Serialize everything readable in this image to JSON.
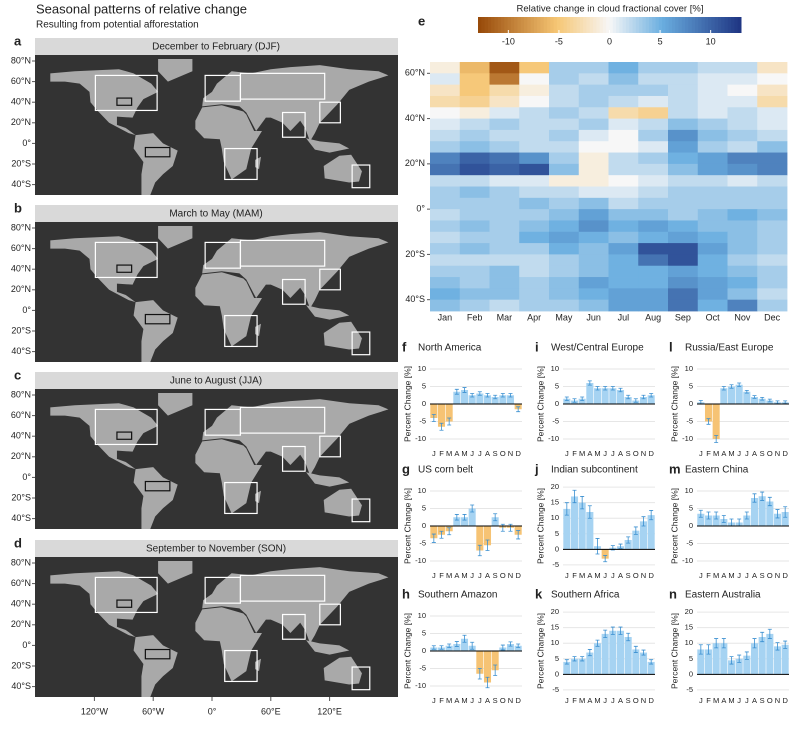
{
  "header": {
    "title": "Seasonal patterns of relative change",
    "subtitle": "Resulting from potential afforestation"
  },
  "maps": {
    "panels": [
      {
        "letter": "a",
        "title": "December to February (DJF)"
      },
      {
        "letter": "b",
        "title": "March to May (MAM)"
      },
      {
        "letter": "c",
        "title": "June to August (JJA)"
      },
      {
        "letter": "d",
        "title": "September to November (SON)"
      }
    ],
    "lat_ticks": [
      {
        "value": 80,
        "label": "80°N"
      },
      {
        "value": 60,
        "label": "60°N"
      },
      {
        "value": 40,
        "label": "40°N"
      },
      {
        "value": 20,
        "label": "20°N"
      },
      {
        "value": 0,
        "label": "0°"
      },
      {
        "value": -20,
        "label": "20°S"
      },
      {
        "value": -40,
        "label": "40°S"
      }
    ],
    "lon_ticks": [
      {
        "value": -120,
        "label": "120°W"
      },
      {
        "value": -60,
        "label": "60°W"
      },
      {
        "value": 0,
        "label": "0°"
      },
      {
        "value": 60,
        "label": "60°E"
      },
      {
        "value": 120,
        "label": "120°E"
      }
    ]
  },
  "chart_data": [
    {
      "type": "heatmap",
      "letter": "e",
      "colorbar_title": "Relative change in cloud fractional cover [%]",
      "categories": [
        "Jan",
        "Feb",
        "Mar",
        "Apr",
        "May",
        "Jun",
        "Jul",
        "Aug",
        "Sep",
        "Oct",
        "Nov",
        "Dec"
      ],
      "y": [
        62.5,
        57.5,
        52.5,
        47.5,
        42.5,
        37.5,
        32.5,
        27.5,
        22.5,
        17.5,
        12.5,
        7.5,
        2.5,
        -2.5,
        -7.5,
        -12.5,
        -17.5,
        -22.5,
        -27.5,
        -32.5,
        -37.5,
        -42.5
      ],
      "ylim": [
        -45,
        65
      ],
      "yticks": [
        {
          "value": 60,
          "label": "60°N"
        },
        {
          "value": 40,
          "label": "40°N"
        },
        {
          "value": 20,
          "label": "20°N"
        },
        {
          "value": 0,
          "label": "0°"
        },
        {
          "value": -20,
          "label": "20°S"
        },
        {
          "value": -40,
          "label": "40°S"
        }
      ],
      "clim": [
        -13,
        13
      ],
      "cticks": [
        -10,
        -5,
        0,
        5,
        10
      ],
      "values": [
        [
          -1,
          -6,
          -12,
          -5,
          3,
          3,
          5,
          3,
          3,
          2,
          2,
          -2
        ],
        [
          1,
          -5,
          -10,
          0,
          3,
          2,
          4,
          2,
          2,
          1,
          1,
          0
        ],
        [
          -2,
          -5,
          -3,
          -1,
          2,
          3,
          3,
          3,
          2,
          1,
          0,
          -2
        ],
        [
          -3,
          -4,
          -2,
          0,
          2,
          3,
          2,
          1,
          2,
          1,
          1,
          -3
        ],
        [
          0,
          -1,
          1,
          2,
          3,
          2,
          -3,
          -4,
          2,
          1,
          2,
          1
        ],
        [
          1,
          2,
          3,
          2,
          2,
          3,
          1,
          2,
          4,
          3,
          2,
          1
        ],
        [
          2,
          3,
          2,
          2,
          3,
          1,
          0,
          3,
          7,
          4,
          3,
          2
        ],
        [
          3,
          4,
          3,
          2,
          2,
          0,
          0,
          1,
          6,
          3,
          2,
          4
        ],
        [
          8,
          10,
          9,
          7,
          3,
          -1,
          2,
          3,
          5,
          6,
          8,
          8
        ],
        [
          9,
          11,
          10,
          11,
          4,
          -1,
          2,
          2,
          4,
          6,
          7,
          8
        ],
        [
          2,
          2,
          1,
          1,
          -1,
          -1,
          0,
          1,
          2,
          2,
          1,
          2
        ],
        [
          3,
          4,
          3,
          2,
          2,
          1,
          1,
          2,
          3,
          3,
          3,
          3
        ],
        [
          3,
          3,
          3,
          4,
          3,
          4,
          2,
          3,
          3,
          3,
          3,
          3
        ],
        [
          2,
          3,
          3,
          3,
          4,
          6,
          4,
          4,
          3,
          4,
          5,
          4
        ],
        [
          3,
          4,
          3,
          4,
          5,
          7,
          5,
          6,
          5,
          4,
          4,
          3
        ],
        [
          2,
          3,
          3,
          5,
          6,
          5,
          4,
          5,
          6,
          5,
          4,
          3
        ],
        [
          3,
          4,
          3,
          3,
          5,
          4,
          6,
          11,
          11,
          6,
          4,
          3
        ],
        [
          2,
          2,
          2,
          2,
          3,
          4,
          5,
          9,
          11,
          5,
          3,
          2
        ],
        [
          3,
          3,
          4,
          2,
          3,
          4,
          5,
          5,
          6,
          5,
          4,
          3
        ],
        [
          4,
          3,
          4,
          3,
          4,
          6,
          5,
          5,
          7,
          6,
          5,
          3
        ],
        [
          5,
          4,
          4,
          3,
          4,
          5,
          6,
          6,
          9,
          6,
          4,
          2
        ],
        [
          4,
          3,
          2,
          3,
          3,
          4,
          6,
          6,
          9,
          5,
          8,
          3
        ]
      ]
    },
    {
      "type": "bar",
      "letter": "f",
      "title": "North America",
      "ylabel": "Percent Change [%]",
      "categories": [
        "J",
        "F",
        "M",
        "A",
        "M",
        "J",
        "J",
        "A",
        "S",
        "O",
        "N",
        "D"
      ],
      "values": [
        -4,
        -6.5,
        -5,
        3.5,
        4,
        2.5,
        3,
        2.5,
        2,
        2.5,
        2.5,
        -1.5
      ],
      "errors": [
        1,
        1,
        1,
        0.7,
        0.7,
        0.5,
        0.5,
        0.5,
        0.5,
        0.5,
        0.5,
        0.7
      ],
      "ylim": [
        -12,
        12
      ],
      "yticks": [
        -10,
        -5,
        0,
        5,
        10
      ],
      "color": "#a6d3f2",
      "negative_color": "#f6c374"
    },
    {
      "type": "bar",
      "letter": "g",
      "title": "US corn belt",
      "ylabel": "Percent Change [%]",
      "categories": [
        "J",
        "F",
        "M",
        "A",
        "M",
        "J",
        "J",
        "A",
        "S",
        "O",
        "N",
        "D"
      ],
      "values": [
        -3.5,
        -2.5,
        -1.5,
        2.5,
        2.5,
        5,
        -7,
        -5.5,
        2.5,
        -0.5,
        -0.5,
        -2.5
      ],
      "errors": [
        1.2,
        1,
        1,
        0.8,
        0.8,
        1,
        1.5,
        1.5,
        1,
        1,
        1,
        1.2
      ],
      "ylim": [
        -12,
        12
      ],
      "yticks": [
        -10,
        -5,
        0,
        5,
        10
      ],
      "color": "#a6d3f2",
      "negative_color": "#f6c374"
    },
    {
      "type": "bar",
      "letter": "h",
      "title": "Southern Amazon",
      "ylabel": "Percent Change [%]",
      "categories": [
        "J",
        "F",
        "M",
        "A",
        "M",
        "J",
        "J",
        "A",
        "S",
        "O",
        "N",
        "D"
      ],
      "values": [
        1,
        1,
        1.5,
        2,
        3.5,
        1.5,
        -6.5,
        -9,
        -5.5,
        1,
        2,
        1.5
      ],
      "errors": [
        0.5,
        0.5,
        0.5,
        0.7,
        1,
        1,
        1.5,
        1.5,
        1.5,
        0.7,
        0.6,
        0.5
      ],
      "ylim": [
        -12,
        12
      ],
      "yticks": [
        -10,
        -5,
        0,
        5,
        10
      ],
      "color": "#a6d3f2",
      "negative_color": "#f6c374"
    },
    {
      "type": "bar",
      "letter": "i",
      "title": "West/Central Europe",
      "ylabel": "Percent Change [%]",
      "categories": [
        "J",
        "F",
        "M",
        "A",
        "M",
        "J",
        "J",
        "A",
        "S",
        "O",
        "N",
        "D"
      ],
      "values": [
        1.5,
        1,
        1.5,
        6,
        4.5,
        4.5,
        4.5,
        4,
        2,
        1,
        2,
        2.5
      ],
      "errors": [
        0.5,
        0.5,
        0.5,
        0.6,
        0.5,
        0.5,
        0.5,
        0.5,
        0.5,
        0.5,
        0.5,
        0.5
      ],
      "ylim": [
        -12,
        12
      ],
      "yticks": [
        -10,
        -5,
        0,
        5,
        10
      ],
      "color": "#a6d3f2",
      "negative_color": "#f6c374"
    },
    {
      "type": "bar",
      "letter": "j",
      "title": "Indian subcontinent",
      "ylabel": "Percent Change [%]",
      "categories": [
        "J",
        "F",
        "M",
        "A",
        "M",
        "J",
        "J",
        "A",
        "S",
        "O",
        "N",
        "D"
      ],
      "values": [
        13,
        17,
        15,
        12,
        1,
        -3,
        0.5,
        1,
        3,
        6,
        9,
        11
      ],
      "errors": [
        2,
        2,
        2,
        2,
        2.5,
        1,
        0.7,
        0.7,
        1,
        1.2,
        1.5,
        1.5
      ],
      "ylim": [
        -6,
        21
      ],
      "yticks": [
        -5,
        0,
        5,
        10,
        15,
        20
      ],
      "color": "#a6d3f2",
      "negative_color": "#f6c374"
    },
    {
      "type": "bar",
      "letter": "k",
      "title": "Southern Africa",
      "ylabel": "Percent Change [%]",
      "categories": [
        "J",
        "F",
        "M",
        "A",
        "M",
        "J",
        "J",
        "A",
        "S",
        "O",
        "N",
        "D"
      ],
      "values": [
        4,
        5,
        5,
        7,
        10,
        13,
        14,
        14,
        12,
        8,
        7,
        4
      ],
      "errors": [
        0.7,
        0.7,
        0.7,
        1,
        1,
        1.2,
        1.2,
        1.2,
        1.2,
        1,
        0.8,
        0.7
      ],
      "ylim": [
        -6,
        21
      ],
      "yticks": [
        -5,
        0,
        5,
        10,
        15,
        20
      ],
      "color": "#a6d3f2",
      "negative_color": "#f6c374"
    },
    {
      "type": "bar",
      "letter": "l",
      "title": "Russia/East Europe",
      "ylabel": "Percent Change [%]",
      "categories": [
        "J",
        "F",
        "M",
        "A",
        "M",
        "J",
        "J",
        "A",
        "S",
        "O",
        "N",
        "D"
      ],
      "values": [
        0.5,
        -5,
        -10,
        4.5,
        5,
        5.5,
        3.5,
        2,
        1.5,
        1,
        0.5,
        0.5
      ],
      "errors": [
        0.5,
        0.8,
        1,
        0.5,
        0.5,
        0.5,
        0.4,
        0.4,
        0.4,
        0.4,
        0.4,
        0.4
      ],
      "ylim": [
        -12,
        12
      ],
      "yticks": [
        -10,
        -5,
        0,
        5,
        10
      ],
      "color": "#a6d3f2",
      "negative_color": "#f6c374"
    },
    {
      "type": "bar",
      "letter": "m",
      "title": "Eastern China",
      "ylabel": "Percent Change [%]",
      "categories": [
        "J",
        "F",
        "M",
        "A",
        "M",
        "J",
        "J",
        "A",
        "S",
        "O",
        "N",
        "D"
      ],
      "values": [
        3.5,
        3,
        3,
        2,
        1,
        1,
        3,
        8,
        8.5,
        7,
        3.5,
        4
      ],
      "errors": [
        1,
        1,
        1,
        1,
        1,
        1,
        1,
        1.2,
        1.2,
        1.2,
        1.2,
        1.5
      ],
      "ylim": [
        -12,
        12
      ],
      "yticks": [
        -10,
        -5,
        0,
        5,
        10
      ],
      "color": "#a6d3f2",
      "negative_color": "#f6c374"
    },
    {
      "type": "bar",
      "letter": "n",
      "title": "Eastern Australia",
      "ylabel": "Percent Change [%]",
      "categories": [
        "J",
        "F",
        "M",
        "A",
        "M",
        "J",
        "J",
        "A",
        "S",
        "O",
        "N",
        "D"
      ],
      "values": [
        8,
        8,
        10,
        10,
        4.5,
        5,
        6,
        10,
        12,
        13,
        9,
        9.5
      ],
      "errors": [
        1.5,
        1.5,
        1.5,
        1.5,
        1.2,
        1.2,
        1.2,
        1.5,
        1.5,
        1.5,
        1.2,
        1.2
      ],
      "ylim": [
        -6,
        21
      ],
      "yticks": [
        -5,
        0,
        5,
        10,
        15,
        20
      ],
      "color": "#a6d3f2",
      "negative_color": "#f6c374"
    }
  ]
}
